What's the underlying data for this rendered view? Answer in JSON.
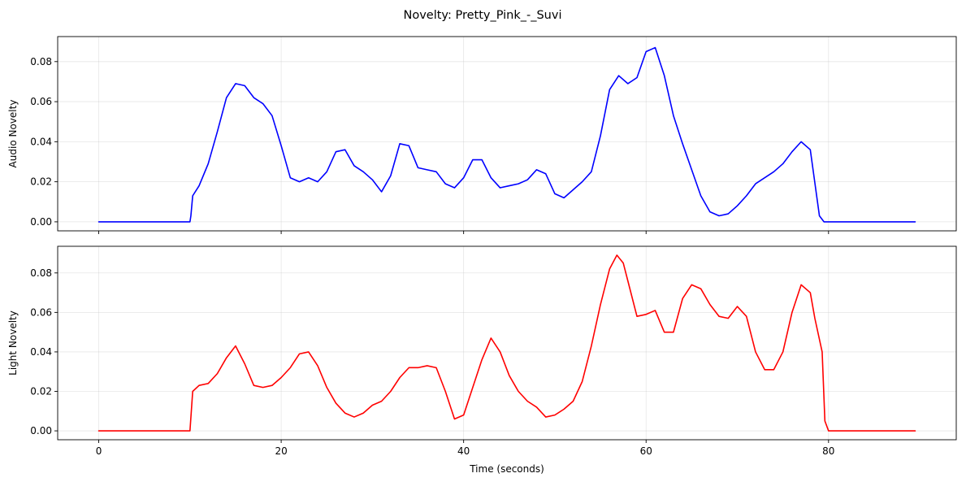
{
  "chart_data": {
    "type": "line",
    "title": "Novelty: Pretty_Pink_-_Suvi",
    "xlabel": "Time (seconds)",
    "xlim": [
      -4.5,
      94
    ],
    "xticks": [
      0,
      20,
      40,
      60,
      80
    ],
    "grid": true,
    "panels": [
      {
        "ylabel": "Audio Novelty",
        "ylim": [
          -0.0045,
          0.0925
        ],
        "yticks": [
          0.0,
          0.02,
          0.04,
          0.06,
          0.08
        ],
        "ytick_labels": [
          "0.00",
          "0.02",
          "0.04",
          "0.06",
          "0.08"
        ],
        "show_xtick_labels": false,
        "series": {
          "color": "#0000ff",
          "x": [
            0,
            10,
            10.1,
            10.3,
            11,
            12,
            13,
            14,
            15,
            16,
            17,
            18,
            19,
            20,
            21,
            22,
            23,
            24,
            25,
            26,
            27,
            28,
            29,
            30,
            31,
            32,
            33,
            34,
            35,
            36,
            37,
            38,
            39,
            40,
            41,
            42,
            43,
            44,
            45,
            46,
            47,
            48,
            49,
            50,
            51,
            52,
            53,
            54,
            55,
            56,
            57,
            58,
            59,
            60,
            61,
            62,
            63,
            64,
            65,
            66,
            67,
            68,
            69,
            70,
            71,
            72,
            73,
            74,
            75,
            76,
            77,
            78,
            79,
            79.5,
            80,
            89.5
          ],
          "y": [
            0,
            0,
            0.003,
            0.013,
            0.018,
            0.029,
            0.045,
            0.062,
            0.069,
            0.068,
            0.062,
            0.059,
            0.053,
            0.038,
            0.022,
            0.02,
            0.022,
            0.02,
            0.025,
            0.035,
            0.036,
            0.028,
            0.025,
            0.021,
            0.015,
            0.023,
            0.039,
            0.038,
            0.027,
            0.026,
            0.025,
            0.019,
            0.017,
            0.022,
            0.031,
            0.031,
            0.022,
            0.017,
            0.018,
            0.019,
            0.021,
            0.026,
            0.024,
            0.014,
            0.012,
            0.016,
            0.02,
            0.025,
            0.043,
            0.066,
            0.073,
            0.069,
            0.072,
            0.085,
            0.087,
            0.073,
            0.053,
            0.039,
            0.026,
            0.013,
            0.005,
            0.003,
            0.004,
            0.008,
            0.013,
            0.019,
            0.022,
            0.025,
            0.029,
            0.035,
            0.04,
            0.036,
            0.003,
            0,
            0,
            0
          ]
        }
      },
      {
        "ylabel": "Light Novelty",
        "ylim": [
          -0.0045,
          0.0935
        ],
        "yticks": [
          0.0,
          0.02,
          0.04,
          0.06,
          0.08
        ],
        "ytick_labels": [
          "0.00",
          "0.02",
          "0.04",
          "0.06",
          "0.08"
        ],
        "show_xtick_labels": true,
        "xtick_labels": [
          "0",
          "20",
          "40",
          "60",
          "80"
        ],
        "series": {
          "color": "#ff0000",
          "x": [
            0,
            10,
            10.3,
            11,
            12,
            13,
            14,
            15,
            16,
            17,
            18,
            19,
            20,
            21,
            22,
            23,
            24,
            25,
            26,
            27,
            28,
            29,
            30,
            31,
            32,
            33,
            34,
            35,
            36,
            37,
            38,
            39,
            40,
            41,
            42,
            43,
            44,
            45,
            46,
            47,
            48,
            49,
            50,
            51,
            52,
            53,
            54,
            55,
            56,
            56.8,
            57.5,
            58,
            59,
            60,
            61,
            62,
            63,
            64,
            65,
            66,
            67,
            68,
            69,
            70,
            71,
            72,
            73,
            74,
            75,
            76,
            77,
            78,
            78.5,
            79.3,
            79.6,
            80,
            89.5
          ],
          "y": [
            0,
            0,
            0.02,
            0.023,
            0.024,
            0.029,
            0.037,
            0.043,
            0.034,
            0.023,
            0.022,
            0.023,
            0.027,
            0.032,
            0.039,
            0.04,
            0.033,
            0.022,
            0.014,
            0.009,
            0.007,
            0.009,
            0.013,
            0.015,
            0.02,
            0.027,
            0.032,
            0.032,
            0.033,
            0.032,
            0.02,
            0.006,
            0.008,
            0.022,
            0.036,
            0.047,
            0.04,
            0.028,
            0.02,
            0.015,
            0.012,
            0.007,
            0.008,
            0.011,
            0.015,
            0.025,
            0.043,
            0.064,
            0.082,
            0.089,
            0.085,
            0.076,
            0.058,
            0.059,
            0.061,
            0.05,
            0.05,
            0.067,
            0.074,
            0.072,
            0.064,
            0.058,
            0.057,
            0.063,
            0.058,
            0.04,
            0.031,
            0.031,
            0.04,
            0.06,
            0.074,
            0.07,
            0.057,
            0.04,
            0.005,
            0,
            0
          ]
        }
      }
    ]
  }
}
